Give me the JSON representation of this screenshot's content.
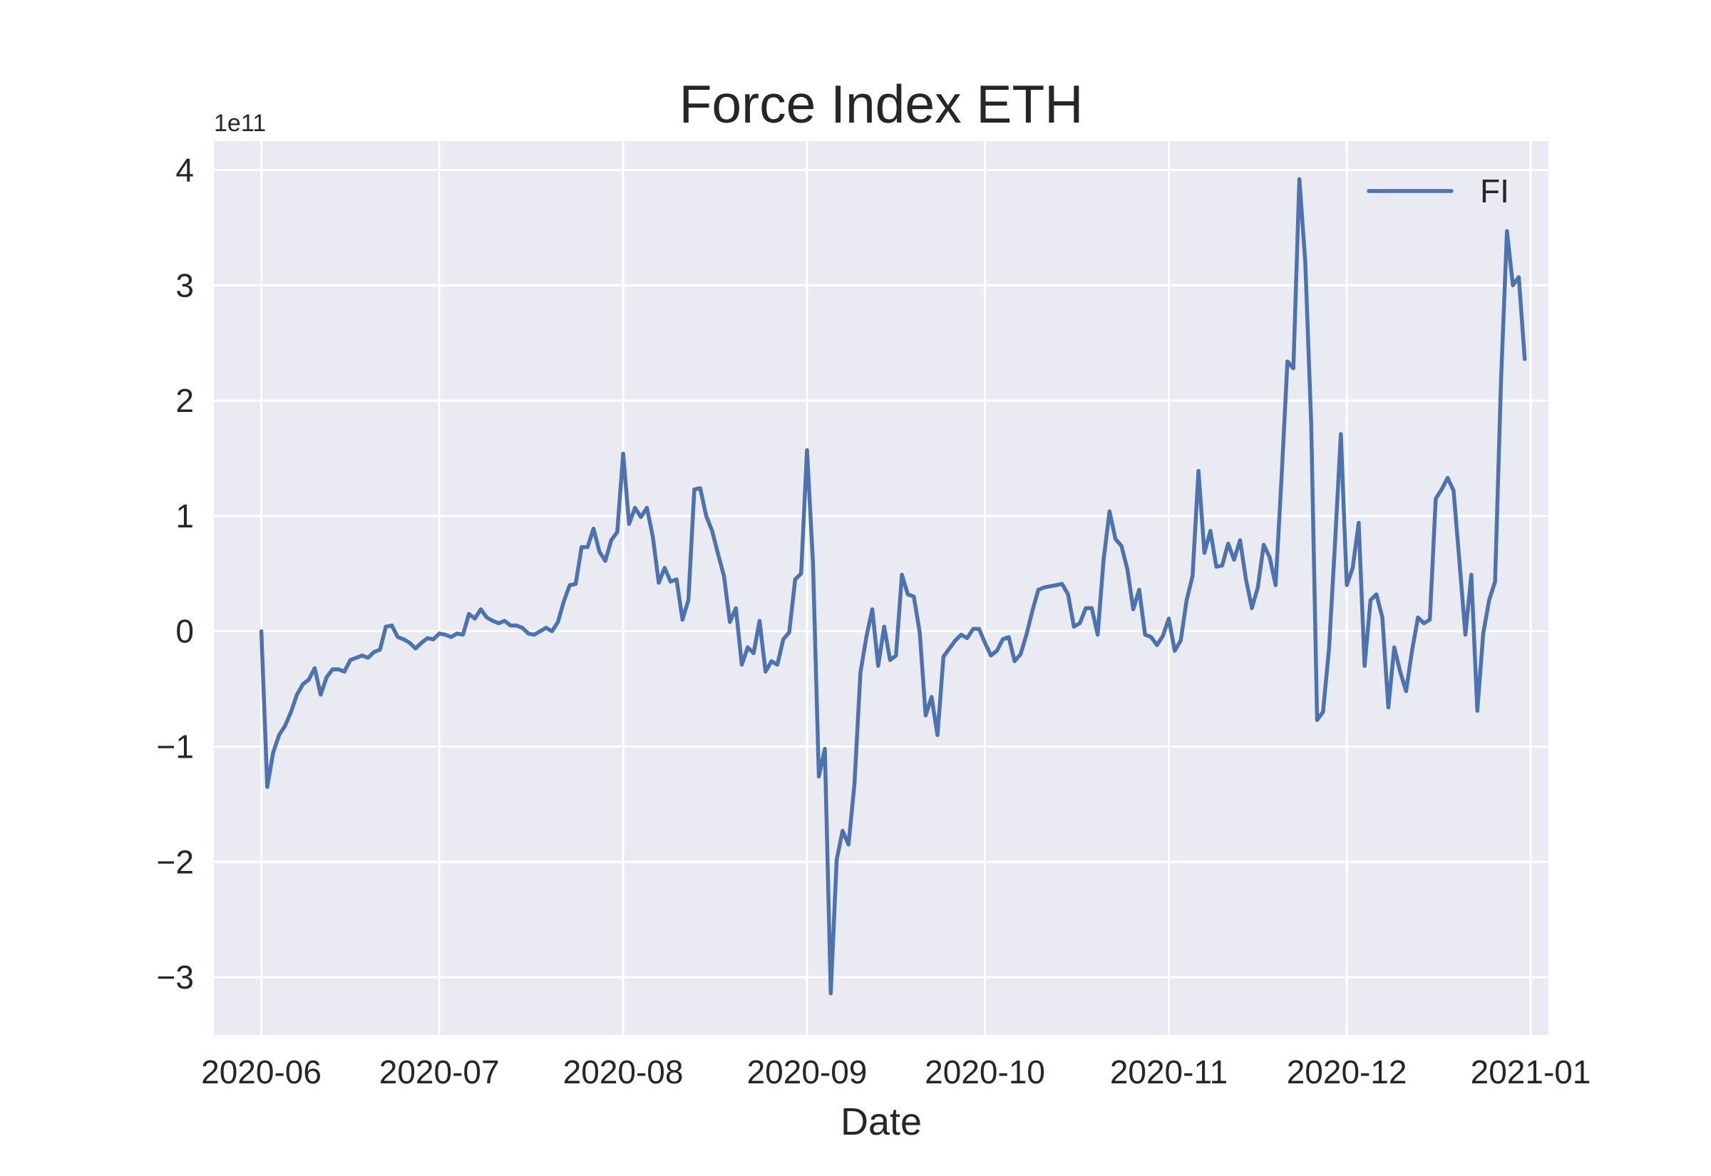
{
  "chart_data": {
    "type": "line",
    "title": "Force Index ETH",
    "xlabel": "Date",
    "ylabel": "",
    "y_offset_label": "1e11",
    "y_multiplier": 100000000000,
    "xlim": [
      "2020-05-24",
      "2021-01-04"
    ],
    "ylim": [
      -3.5,
      4.25
    ],
    "x_ticks": [
      "2020-06-01",
      "2020-07-01",
      "2020-08-01",
      "2020-09-01",
      "2020-10-01",
      "2020-11-01",
      "2020-12-01",
      "2021-01-01"
    ],
    "x_tick_labels": [
      "2020-06",
      "2020-07",
      "2020-08",
      "2020-09",
      "2020-10",
      "2020-11",
      "2020-12",
      "2021-01"
    ],
    "y_ticks": [
      -3,
      -2,
      -1,
      0,
      1,
      2,
      3,
      4
    ],
    "y_tick_labels": [
      "−3",
      "−2",
      "−1",
      "0",
      "1",
      "2",
      "3",
      "4"
    ],
    "grid": true,
    "legend_position": "top-right",
    "series": [
      {
        "name": "FI",
        "color": "#4c72b0",
        "x": [
          "2020-06-01",
          "2020-06-02",
          "2020-06-03",
          "2020-06-04",
          "2020-06-05",
          "2020-06-06",
          "2020-06-07",
          "2020-06-08",
          "2020-06-09",
          "2020-06-10",
          "2020-06-11",
          "2020-06-12",
          "2020-06-13",
          "2020-06-14",
          "2020-06-15",
          "2020-06-16",
          "2020-06-17",
          "2020-06-18",
          "2020-06-19",
          "2020-06-20",
          "2020-06-21",
          "2020-06-22",
          "2020-06-23",
          "2020-06-24",
          "2020-06-25",
          "2020-06-26",
          "2020-06-27",
          "2020-06-28",
          "2020-06-29",
          "2020-06-30",
          "2020-07-01",
          "2020-07-02",
          "2020-07-03",
          "2020-07-04",
          "2020-07-05",
          "2020-07-06",
          "2020-07-07",
          "2020-07-08",
          "2020-07-09",
          "2020-07-10",
          "2020-07-11",
          "2020-07-12",
          "2020-07-13",
          "2020-07-14",
          "2020-07-15",
          "2020-07-16",
          "2020-07-17",
          "2020-07-18",
          "2020-07-19",
          "2020-07-20",
          "2020-07-21",
          "2020-07-22",
          "2020-07-23",
          "2020-07-24",
          "2020-07-25",
          "2020-07-26",
          "2020-07-27",
          "2020-07-28",
          "2020-07-29",
          "2020-07-30",
          "2020-07-31",
          "2020-08-01",
          "2020-08-02",
          "2020-08-03",
          "2020-08-04",
          "2020-08-05",
          "2020-08-06",
          "2020-08-07",
          "2020-08-08",
          "2020-08-09",
          "2020-08-10",
          "2020-08-11",
          "2020-08-12",
          "2020-08-13",
          "2020-08-14",
          "2020-08-15",
          "2020-08-16",
          "2020-08-17",
          "2020-08-18",
          "2020-08-19",
          "2020-08-20",
          "2020-08-21",
          "2020-08-22",
          "2020-08-23",
          "2020-08-24",
          "2020-08-25",
          "2020-08-26",
          "2020-08-27",
          "2020-08-28",
          "2020-08-29",
          "2020-08-30",
          "2020-08-31",
          "2020-09-01",
          "2020-09-02",
          "2020-09-03",
          "2020-09-04",
          "2020-09-05",
          "2020-09-06",
          "2020-09-07",
          "2020-09-08",
          "2020-09-09",
          "2020-09-10",
          "2020-09-11",
          "2020-09-12",
          "2020-09-13",
          "2020-09-14",
          "2020-09-15",
          "2020-09-16",
          "2020-09-17",
          "2020-09-18",
          "2020-09-19",
          "2020-09-20",
          "2020-09-21",
          "2020-09-22",
          "2020-09-23",
          "2020-09-24",
          "2020-09-25",
          "2020-09-26",
          "2020-09-27",
          "2020-09-28",
          "2020-09-29",
          "2020-09-30",
          "2020-10-01",
          "2020-10-02",
          "2020-10-03",
          "2020-10-04",
          "2020-10-05",
          "2020-10-06",
          "2020-10-07",
          "2020-10-08",
          "2020-10-09",
          "2020-10-10",
          "2020-10-11",
          "2020-10-12",
          "2020-10-13",
          "2020-10-14",
          "2020-10-15",
          "2020-10-16",
          "2020-10-17",
          "2020-10-18",
          "2020-10-19",
          "2020-10-20",
          "2020-10-21",
          "2020-10-22",
          "2020-10-23",
          "2020-10-24",
          "2020-10-25",
          "2020-10-26",
          "2020-10-27",
          "2020-10-28",
          "2020-10-29",
          "2020-10-30",
          "2020-10-31",
          "2020-11-01",
          "2020-11-02",
          "2020-11-03",
          "2020-11-04",
          "2020-11-05",
          "2020-11-06",
          "2020-11-07",
          "2020-11-08",
          "2020-11-09",
          "2020-11-10",
          "2020-11-11",
          "2020-11-12",
          "2020-11-13",
          "2020-11-14",
          "2020-11-15",
          "2020-11-16",
          "2020-11-17",
          "2020-11-18",
          "2020-11-19",
          "2020-11-20",
          "2020-11-21",
          "2020-11-22",
          "2020-11-23",
          "2020-11-24",
          "2020-11-25",
          "2020-11-26",
          "2020-11-27",
          "2020-11-28",
          "2020-11-29",
          "2020-11-30",
          "2020-12-01",
          "2020-12-02",
          "2020-12-03",
          "2020-12-04",
          "2020-12-05",
          "2020-12-06",
          "2020-12-07",
          "2020-12-08",
          "2020-12-09",
          "2020-12-10",
          "2020-12-11",
          "2020-12-12",
          "2020-12-13",
          "2020-12-14",
          "2020-12-15",
          "2020-12-16",
          "2020-12-17",
          "2020-12-18",
          "2020-12-19",
          "2020-12-20",
          "2020-12-21",
          "2020-12-22",
          "2020-12-23",
          "2020-12-24",
          "2020-12-25",
          "2020-12-26",
          "2020-12-27",
          "2020-12-28",
          "2020-12-29",
          "2020-12-30",
          "2020-12-31"
        ],
        "values": [
          0,
          -1.35,
          -1.05,
          -0.9,
          -0.82,
          -0.7,
          -0.55,
          -0.46,
          -0.42,
          -0.32,
          -0.55,
          -0.4,
          -0.33,
          -0.33,
          -0.35,
          -0.25,
          -0.23,
          -0.21,
          -0.23,
          -0.18,
          -0.16,
          0.04,
          0.05,
          -0.05,
          -0.07,
          -0.1,
          -0.15,
          -0.1,
          -0.06,
          -0.07,
          -0.02,
          -0.03,
          -0.05,
          -0.02,
          -0.03,
          0.15,
          0.11,
          0.19,
          0.12,
          0.09,
          0.07,
          0.09,
          0.05,
          0.05,
          0.03,
          -0.02,
          -0.03,
          0.0,
          0.03,
          0.0,
          0.08,
          0.26,
          0.4,
          0.41,
          0.73,
          0.73,
          0.89,
          0.69,
          0.61,
          0.79,
          0.86,
          1.54,
          0.93,
          1.07,
          0.99,
          1.07,
          0.82,
          0.42,
          0.55,
          0.43,
          0.45,
          0.1,
          0.27,
          1.23,
          1.24,
          1.0,
          0.87,
          0.67,
          0.48,
          0.08,
          0.2,
          -0.29,
          -0.14,
          -0.19,
          0.09,
          -0.35,
          -0.26,
          -0.29,
          -0.07,
          -0.01,
          0.45,
          0.5,
          1.57,
          0.6,
          -1.26,
          -1.02,
          -3.14,
          -1.98,
          -1.73,
          -1.85,
          -1.32,
          -0.36,
          -0.05,
          0.19,
          -0.3,
          0.04,
          -0.25,
          -0.21,
          0.49,
          0.32,
          0.3,
          -0.01,
          -0.73,
          -0.57,
          -0.9,
          -0.22,
          -0.15,
          -0.08,
          -0.03,
          -0.06,
          0.02,
          0.02,
          -0.1,
          -0.21,
          -0.17,
          -0.07,
          -0.05,
          -0.26,
          -0.2,
          -0.03,
          0.18,
          0.36,
          0.38,
          0.39,
          0.4,
          0.41,
          0.32,
          0.04,
          0.07,
          0.2,
          0.2,
          -0.03,
          0.62,
          1.04,
          0.8,
          0.74,
          0.54,
          0.19,
          0.36,
          -0.03,
          -0.05,
          -0.12,
          -0.04,
          0.11,
          -0.17,
          -0.08,
          0.27,
          0.48,
          1.39,
          0.68,
          0.87,
          0.56,
          0.57,
          0.76,
          0.62,
          0.79,
          0.45,
          0.2,
          0.38,
          0.75,
          0.64,
          0.4,
          1.33,
          2.34,
          2.28,
          3.92,
          3.2,
          1.8,
          -0.77,
          -0.7,
          -0.15,
          0.75,
          1.71,
          0.4,
          0.55,
          0.94,
          -0.3,
          0.27,
          0.32,
          0.12,
          -0.66,
          -0.14,
          -0.35,
          -0.52,
          -0.17,
          0.12,
          0.07,
          0.1,
          1.15,
          1.23,
          1.33,
          1.22,
          0.6,
          -0.03,
          0.49,
          -0.69,
          -0.02,
          0.27,
          0.43,
          2.16,
          3.47,
          3.0,
          3.07,
          2.36
        ]
      }
    ]
  }
}
